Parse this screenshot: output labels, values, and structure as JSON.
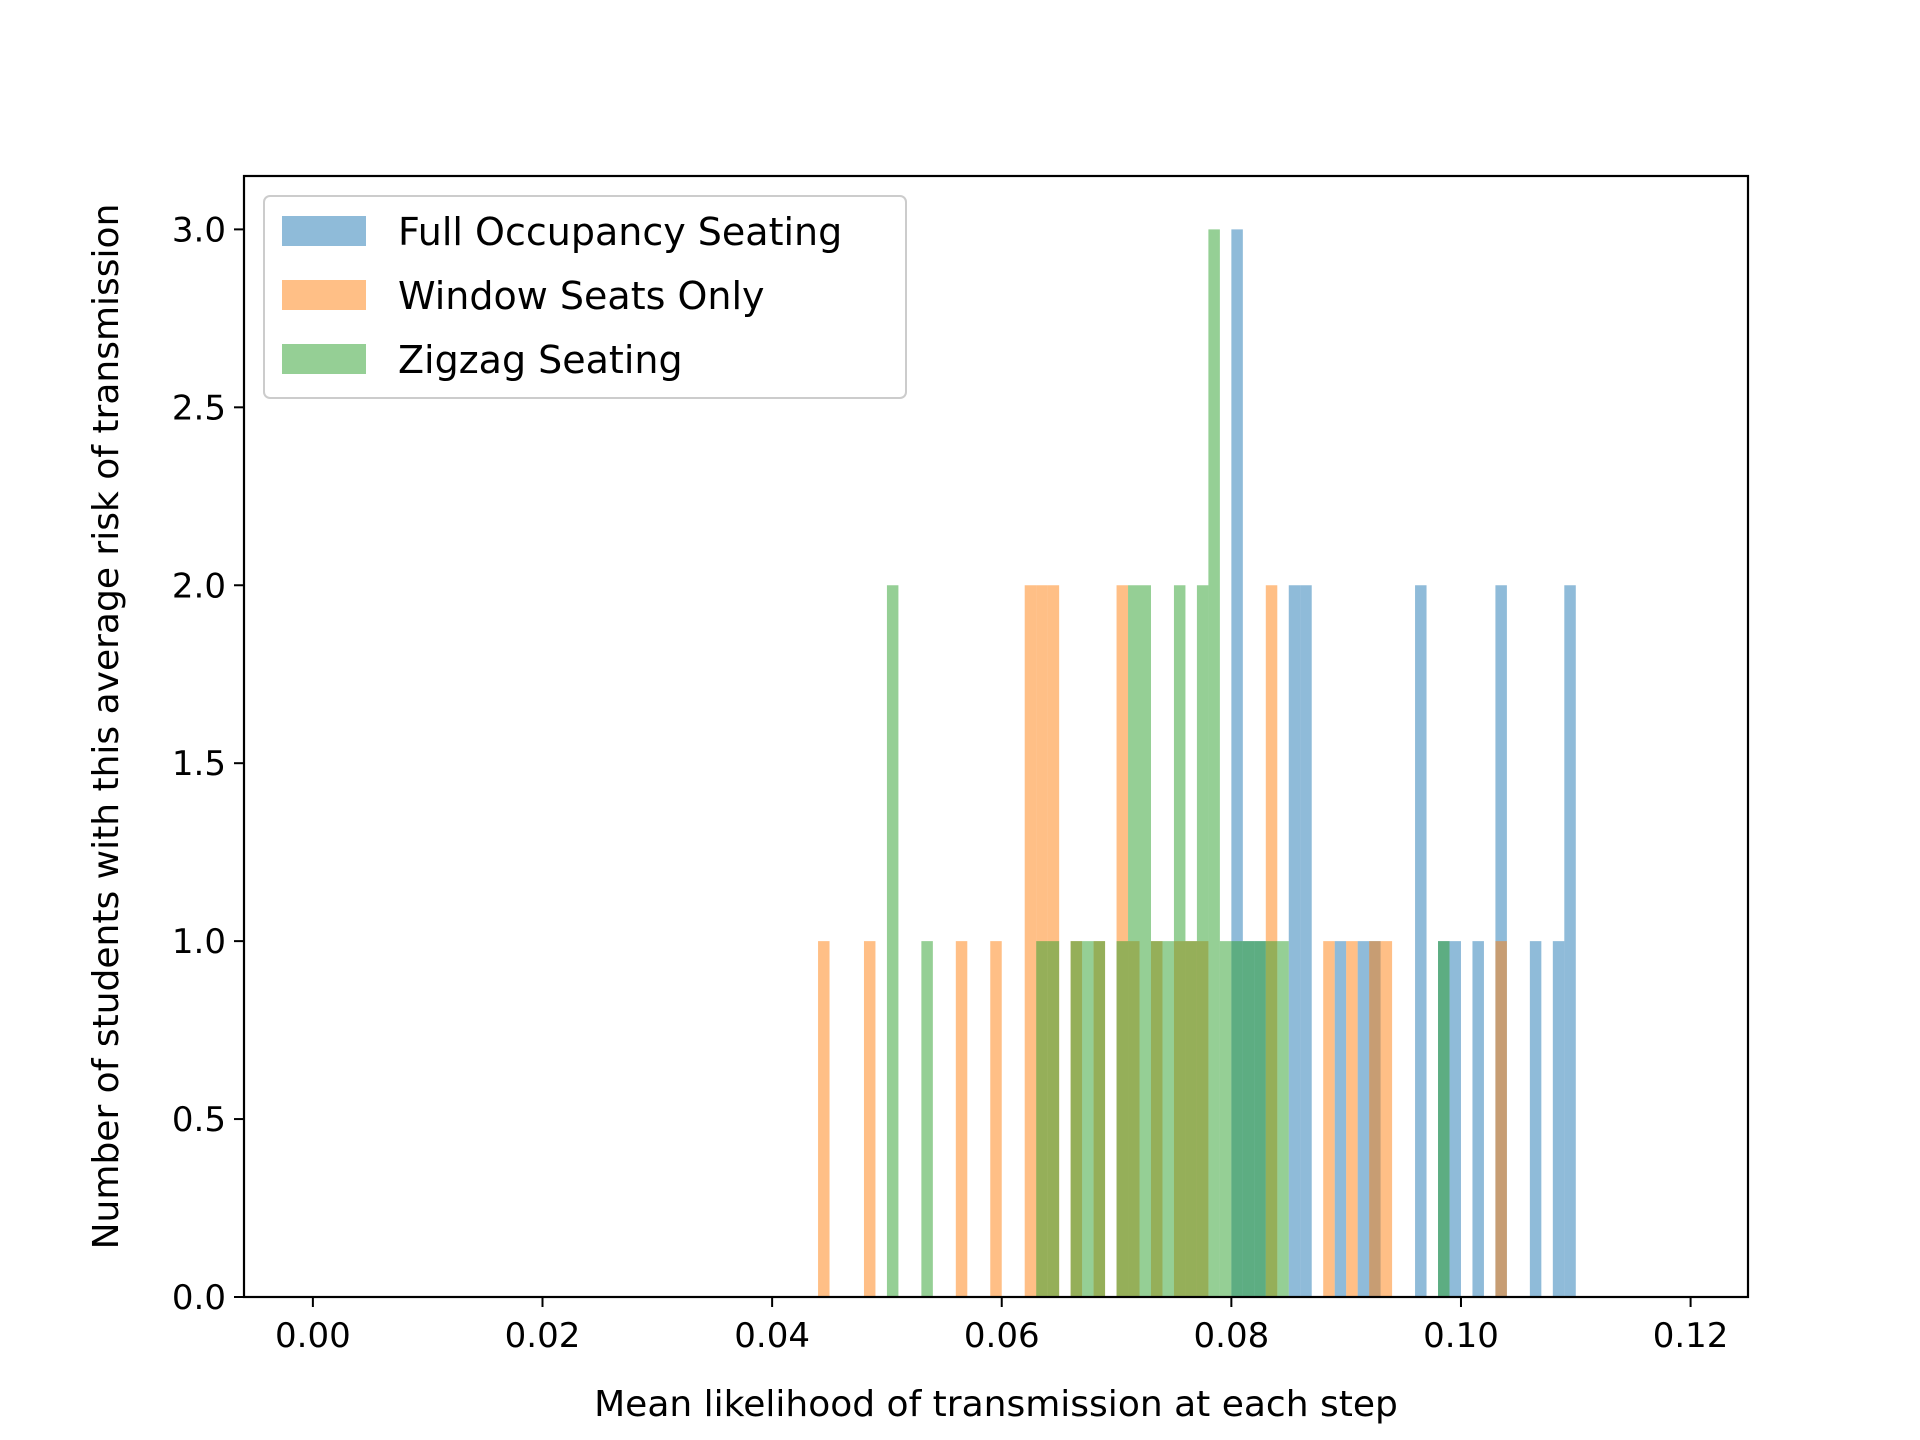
{
  "chart_data": {
    "type": "bar",
    "xlabel": "Mean likelihood of transmission at each step",
    "ylabel": "Number of students with this average risk of transmission",
    "xlim": [
      -0.006,
      0.125
    ],
    "ylim": [
      0,
      3.15
    ],
    "xticks": [
      0.0,
      0.02,
      0.04,
      0.06,
      0.08,
      0.1,
      0.12
    ],
    "xtick_labels": [
      "0.00",
      "0.02",
      "0.04",
      "0.06",
      "0.08",
      "0.10",
      "0.12"
    ],
    "yticks": [
      0.0,
      0.5,
      1.0,
      1.5,
      2.0,
      2.5,
      3.0
    ],
    "ytick_labels": [
      "0.0",
      "0.5",
      "1.0",
      "1.5",
      "2.0",
      "2.5",
      "3.0"
    ],
    "bin_width": 0.001,
    "legend_position": "top-left",
    "series": [
      {
        "name": "Full Occupancy Seating",
        "color": "#1f77b4",
        "opacity": 0.5,
        "bins": [
          {
            "x": 0.0805,
            "count": 3
          },
          {
            "x": 0.0815,
            "count": 1
          },
          {
            "x": 0.0825,
            "count": 1
          },
          {
            "x": 0.0855,
            "count": 2
          },
          {
            "x": 0.0865,
            "count": 2
          },
          {
            "x": 0.0895,
            "count": 1
          },
          {
            "x": 0.0915,
            "count": 1
          },
          {
            "x": 0.0925,
            "count": 1
          },
          {
            "x": 0.0965,
            "count": 2
          },
          {
            "x": 0.0985,
            "count": 1
          },
          {
            "x": 0.0995,
            "count": 1
          },
          {
            "x": 0.1015,
            "count": 1
          },
          {
            "x": 0.1035,
            "count": 2
          },
          {
            "x": 0.1065,
            "count": 1
          },
          {
            "x": 0.1085,
            "count": 1
          },
          {
            "x": 0.1095,
            "count": 2
          }
        ]
      },
      {
        "name": "Window Seats Only",
        "color": "#ff7f0e",
        "opacity": 0.5,
        "bins": [
          {
            "x": 0.0445,
            "count": 1
          },
          {
            "x": 0.0485,
            "count": 1
          },
          {
            "x": 0.0565,
            "count": 1
          },
          {
            "x": 0.0595,
            "count": 1
          },
          {
            "x": 0.0625,
            "count": 2
          },
          {
            "x": 0.0635,
            "count": 2
          },
          {
            "x": 0.0645,
            "count": 2
          },
          {
            "x": 0.0665,
            "count": 1
          },
          {
            "x": 0.0685,
            "count": 1
          },
          {
            "x": 0.0705,
            "count": 2
          },
          {
            "x": 0.0715,
            "count": 1
          },
          {
            "x": 0.0735,
            "count": 1
          },
          {
            "x": 0.0755,
            "count": 1
          },
          {
            "x": 0.0765,
            "count": 1
          },
          {
            "x": 0.0775,
            "count": 1
          },
          {
            "x": 0.0835,
            "count": 2
          },
          {
            "x": 0.0885,
            "count": 1
          },
          {
            "x": 0.0905,
            "count": 1
          },
          {
            "x": 0.0925,
            "count": 1
          },
          {
            "x": 0.0935,
            "count": 1
          },
          {
            "x": 0.1035,
            "count": 1
          }
        ]
      },
      {
        "name": "Zigzag Seating",
        "color": "#2ca02c",
        "opacity": 0.5,
        "bins": [
          {
            "x": 0.0505,
            "count": 2
          },
          {
            "x": 0.0535,
            "count": 1
          },
          {
            "x": 0.0635,
            "count": 1
          },
          {
            "x": 0.0645,
            "count": 1
          },
          {
            "x": 0.0665,
            "count": 1
          },
          {
            "x": 0.0675,
            "count": 1
          },
          {
            "x": 0.0685,
            "count": 1
          },
          {
            "x": 0.0705,
            "count": 1
          },
          {
            "x": 0.0715,
            "count": 2
          },
          {
            "x": 0.0725,
            "count": 2
          },
          {
            "x": 0.0735,
            "count": 1
          },
          {
            "x": 0.0745,
            "count": 1
          },
          {
            "x": 0.0755,
            "count": 2
          },
          {
            "x": 0.0765,
            "count": 1
          },
          {
            "x": 0.0775,
            "count": 2
          },
          {
            "x": 0.0785,
            "count": 3
          },
          {
            "x": 0.0795,
            "count": 1
          },
          {
            "x": 0.0805,
            "count": 1
          },
          {
            "x": 0.0815,
            "count": 1
          },
          {
            "x": 0.0825,
            "count": 1
          },
          {
            "x": 0.0835,
            "count": 1
          },
          {
            "x": 0.0845,
            "count": 1
          },
          {
            "x": 0.0985,
            "count": 1
          }
        ]
      }
    ]
  }
}
